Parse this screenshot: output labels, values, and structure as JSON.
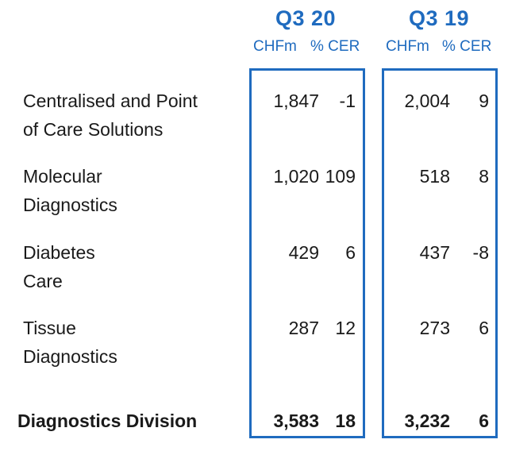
{
  "columns": [
    {
      "period": "Q3 20",
      "unit": "CHFm",
      "change": "% CER"
    },
    {
      "period": "Q3 19",
      "unit": "CHFm",
      "change": "% CER"
    }
  ],
  "rows": [
    {
      "line1": "Centralised and Point",
      "line2": "of Care Solutions",
      "q3_20_chfm": "1,847",
      "q3_20_cer": "-1",
      "q3_19_chfm": "2,004",
      "q3_19_cer": "9"
    },
    {
      "line1": "Molecular",
      "line2": "Diagnostics",
      "q3_20_chfm": "1,020",
      "q3_20_cer": "109",
      "q3_19_chfm": "518",
      "q3_19_cer": "8"
    },
    {
      "line1": "Diabetes",
      "line2": "Care",
      "q3_20_chfm": "429",
      "q3_20_cer": "6",
      "q3_19_chfm": "437",
      "q3_19_cer": "-8"
    },
    {
      "line1": "Tissue",
      "line2": "Diagnostics",
      "q3_20_chfm": "287",
      "q3_20_cer": "12",
      "q3_19_chfm": "273",
      "q3_19_cer": "6"
    }
  ],
  "total": {
    "label": "Diagnostics Division",
    "q3_20_chfm": "3,583",
    "q3_20_cer": "18",
    "q3_19_chfm": "3,232",
    "q3_19_cer": "6"
  },
  "colors": {
    "accent": "#1f6bbf",
    "text": "#1a1a1a"
  }
}
